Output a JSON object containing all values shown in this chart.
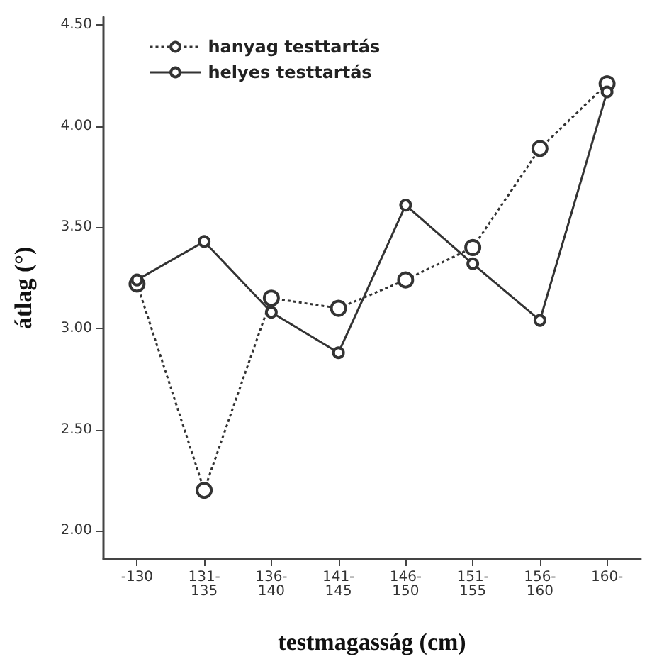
{
  "chart_data": {
    "type": "line",
    "xlabel": "testmagasság (cm)",
    "ylabel": "átlag (°)",
    "categories": [
      "-130",
      "131-\n135",
      "136-\n140",
      "141-\n145",
      "146-\n150",
      "151-\n155",
      "156-\n160",
      "160-"
    ],
    "series": [
      {
        "name": "hanyag testtartás",
        "color": "#333333",
        "line_style": "dotted",
        "values": [
          3.22,
          2.2,
          3.15,
          3.1,
          3.24,
          3.4,
          3.89,
          4.21
        ]
      },
      {
        "name": "helyes testtartás",
        "color": "#333333",
        "line_style": "solid",
        "values": [
          3.24,
          3.43,
          3.08,
          2.88,
          3.61,
          3.32,
          3.04,
          4.17
        ]
      }
    ],
    "ylim": [
      1.86,
      4.54
    ],
    "yticks": [
      {
        "value": 2.0,
        "label": "2.00"
      },
      {
        "value": 2.5,
        "label": "2.50"
      },
      {
        "value": 3.0,
        "label": "3.00"
      },
      {
        "value": 3.5,
        "label": "3.50"
      },
      {
        "value": 4.0,
        "label": "4.00"
      },
      {
        "value": 4.5,
        "label": "4.50"
      }
    ],
    "marker": "circle",
    "grid": false,
    "legend": "top left"
  }
}
